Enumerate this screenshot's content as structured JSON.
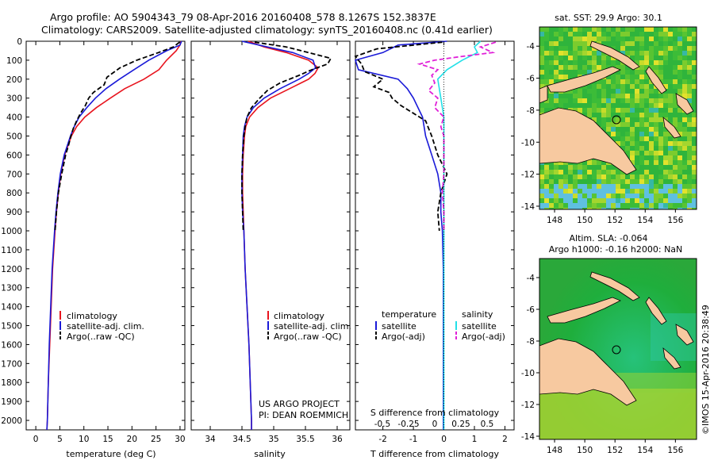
{
  "header": {
    "line1": "Argo profile: AO 5904343_79 08-Apr-2016 20160408_578 8.1267S 152.3837E",
    "line2": "Climatology: CARS2009. Satellite-adjusted climatology: synTS_20160408.nc (0.41d earlier)"
  },
  "colors": {
    "climatology": "#e8141e",
    "satellite": "#1a1ad8",
    "argo": "#000000",
    "sal_satellite": "#22e0e8",
    "sal_argo": "#e020d8",
    "land": "#f7c9a0",
    "sea_green": "#22b83a"
  },
  "depth_axis": {
    "ylim": [
      2050,
      0
    ],
    "ticks": [
      0,
      100,
      200,
      300,
      400,
      500,
      600,
      700,
      800,
      900,
      1000,
      1100,
      1200,
      1300,
      1400,
      1500,
      1600,
      1700,
      1800,
      1900,
      2000
    ],
    "tick_labels": [
      "0",
      "100",
      "200",
      "300",
      "400",
      "500",
      "600",
      "700",
      "800",
      "900",
      "1000",
      "1100",
      "1200",
      "1300",
      "1400",
      "1500",
      "1600",
      "1700",
      "1800",
      "1900",
      "2000"
    ]
  },
  "chart_data": [
    {
      "type": "line",
      "xlabel": "temperature (deg C)",
      "xlim": [
        -2,
        31
      ],
      "xticks": [
        0,
        5,
        10,
        15,
        20,
        25,
        30
      ],
      "xtick_labels": [
        "0",
        "5",
        "10",
        "15",
        "20",
        "25",
        "30"
      ],
      "legend": [
        "climatology",
        "satellite-adj. clim.",
        "Argo(..raw -QC)"
      ],
      "series": [
        {
          "name": "climatology",
          "depth": [
            0,
            20,
            50,
            100,
            150,
            200,
            250,
            300,
            350,
            400,
            450,
            500,
            600,
            700,
            800,
            900,
            1000,
            1200,
            1400,
            1600,
            1800,
            2000,
            2050
          ],
          "values": [
            30.2,
            30.0,
            29.2,
            27.2,
            25.6,
            22.5,
            18.5,
            15.5,
            12.6,
            10.2,
            8.5,
            7.4,
            6.0,
            5.2,
            4.7,
            4.3,
            4.0,
            3.5,
            3.2,
            2.9,
            2.6,
            2.4,
            2.3
          ]
        },
        {
          "name": "satellite-adj. clim.",
          "depth": [
            0,
            20,
            50,
            100,
            150,
            200,
            250,
            300,
            350,
            400,
            450,
            500,
            600,
            700,
            800,
            900,
            1000,
            1200,
            1400,
            1600,
            1800,
            2000,
            2050
          ],
          "values": [
            30.3,
            30.0,
            27.2,
            23.5,
            20.4,
            17.4,
            14.6,
            12.4,
            10.6,
            9.0,
            8.0,
            7.2,
            5.9,
            5.1,
            4.6,
            4.2,
            3.9,
            3.4,
            3.1,
            2.8,
            2.6,
            2.4,
            2.3
          ]
        },
        {
          "name": "Argo(..raw -QC)",
          "depth": [
            5,
            30,
            60,
            100,
            140,
            190,
            230,
            270,
            300,
            340,
            380,
            420,
            460,
            500,
            550,
            600,
            700,
            800,
            900,
            1000
          ],
          "values": [
            29.9,
            28.6,
            25.5,
            21.0,
            17.5,
            14.8,
            14.2,
            12.0,
            11.0,
            10.3,
            9.3,
            8.5,
            7.8,
            7.3,
            6.8,
            6.2,
            5.4,
            4.7,
            4.3,
            4.0
          ]
        }
      ]
    },
    {
      "type": "line",
      "xlabel": "salinity",
      "xlim": [
        33.7,
        36.2
      ],
      "xticks": [
        34,
        34.5,
        35,
        35.5,
        36
      ],
      "xtick_labels": [
        "34",
        "34.5",
        "35",
        "35.5",
        "36"
      ],
      "legend": [
        "climatology",
        "satellite-adj. clim.",
        "Argo(..raw -QC)"
      ],
      "annotation": [
        "US ARGO PROJECT",
        "PI: DEAN ROEMMICH"
      ],
      "series": [
        {
          "name": "climatology",
          "depth": [
            0,
            30,
            60,
            100,
            140,
            170,
            200,
            250,
            300,
            350,
            400,
            450,
            500,
            600,
            700,
            800,
            900,
            1000,
            1200,
            1400,
            1600,
            1800,
            2000,
            2050
          ],
          "values": [
            34.6,
            34.85,
            35.2,
            35.55,
            35.7,
            35.65,
            35.55,
            35.25,
            34.95,
            34.75,
            34.62,
            34.56,
            34.54,
            34.52,
            34.51,
            34.51,
            34.52,
            34.53,
            34.55,
            34.58,
            34.61,
            34.63,
            34.65,
            34.65
          ]
        },
        {
          "name": "satellite-adj. clim.",
          "depth": [
            0,
            30,
            60,
            100,
            140,
            170,
            200,
            250,
            300,
            350,
            400,
            450,
            500,
            600,
            700,
            800,
            900,
            1000,
            1200,
            1400,
            1600,
            1800,
            2000,
            2050
          ],
          "values": [
            34.5,
            34.9,
            35.3,
            35.62,
            35.66,
            35.55,
            35.4,
            35.1,
            34.85,
            34.68,
            34.58,
            34.54,
            34.52,
            34.51,
            34.5,
            34.5,
            34.51,
            34.53,
            34.55,
            34.58,
            34.61,
            34.63,
            34.65,
            34.65
          ]
        },
        {
          "name": "Argo(..raw -QC)",
          "depth": [
            5,
            30,
            60,
            90,
            120,
            150,
            180,
            220,
            260,
            300,
            350,
            400,
            450,
            500,
            550,
            600,
            700,
            800,
            900,
            1000
          ],
          "values": [
            34.7,
            35.2,
            35.55,
            35.9,
            35.85,
            35.6,
            35.4,
            35.1,
            34.9,
            34.78,
            34.65,
            34.58,
            34.55,
            34.53,
            34.52,
            34.51,
            34.5,
            34.5,
            34.51,
            34.52
          ]
        }
      ]
    },
    {
      "type": "line",
      "xlabel": "T difference from climatology",
      "xlabel_top": "S difference from climatology",
      "xlim": [
        -2.9,
        2.3
      ],
      "xticks": [
        -2,
        -1,
        0,
        1,
        2
      ],
      "xtick_labels": [
        "-2",
        "-1",
        "0",
        "1",
        "2"
      ],
      "s_xticks": [
        -0.5,
        -0.25,
        0,
        0.25,
        0.5
      ],
      "s_xtick_labels": [
        "-0.5",
        "-0.25",
        "0",
        "0.25",
        "0.5"
      ],
      "legend_temperature": {
        "header": "temperature",
        "items": [
          "satellite",
          "Argo(-adj)"
        ]
      },
      "legend_salinity": {
        "header": "salinity",
        "items": [
          "satellite",
          "Argo(-adj)"
        ]
      },
      "series": [
        {
          "name": "temperature satellite",
          "depth": [
            0,
            20,
            60,
            100,
            150,
            200,
            250,
            300,
            400,
            500,
            600,
            700,
            800,
            900,
            1000,
            1200,
            1500,
            1800,
            2000,
            2050
          ],
          "values": [
            0.1,
            -1.5,
            -2.0,
            -2.9,
            -2.8,
            -1.5,
            -1.2,
            -1.0,
            -0.7,
            -0.6,
            -0.4,
            -0.2,
            -0.1,
            -0.1,
            -0.05,
            -0.02,
            -0.02,
            -0.02,
            -0.02,
            -0.02
          ]
        },
        {
          "name": "temperature Argo(-adj)",
          "depth": [
            5,
            40,
            80,
            120,
            160,
            200,
            240,
            270,
            300,
            340,
            380,
            420,
            460,
            500,
            550,
            600,
            700,
            800,
            900,
            1000
          ],
          "values": [
            -0.05,
            -2.2,
            -2.9,
            -2.7,
            -2.6,
            -2.0,
            -2.3,
            -1.8,
            -1.7,
            -1.4,
            -1.0,
            -0.6,
            -0.5,
            -0.4,
            -0.3,
            -0.2,
            0.1,
            -0.1,
            -0.2,
            -0.15
          ]
        },
        {
          "name": "salinity satellite",
          "depth": [
            0,
            30,
            60,
            100,
            150,
            200,
            300,
            400,
            500,
            600,
            700,
            800,
            1000,
            1500,
            2000,
            2050
          ],
          "values": [
            1.2,
            1.0,
            1.1,
            0.6,
            0.1,
            -0.2,
            -0.1,
            0.0,
            0.0,
            0.0,
            0.0,
            0.0,
            0.0,
            0.0,
            0.0,
            0.0
          ]
        },
        {
          "name": "salinity Argo(-adj)",
          "depth": [
            5,
            30,
            60,
            80,
            100,
            120,
            150,
            180,
            220,
            260,
            300,
            350,
            400,
            450,
            500,
            600,
            700,
            800,
            900,
            1000
          ],
          "values": [
            1.7,
            1.2,
            1.6,
            0.6,
            -0.3,
            -0.8,
            -0.2,
            -0.4,
            -0.3,
            -0.5,
            -0.2,
            -0.3,
            0.0,
            -0.1,
            0.0,
            0.0,
            0.0,
            -0.05,
            0.0,
            0.0
          ]
        }
      ]
    },
    {
      "type": "heatmap",
      "title": "sat. SST: 29.9 Argo: 30.1",
      "xlim": [
        147,
        157.4
      ],
      "ylim": [
        -14.2,
        -2.8
      ],
      "xticks": [
        148,
        150,
        152,
        154,
        156
      ],
      "xtick_labels": [
        "148",
        "150",
        "152",
        "154",
        "156"
      ],
      "yticks": [
        -4,
        -6,
        -8,
        -10,
        -12,
        -14
      ],
      "ytick_labels": [
        "-4",
        "-6",
        "-8",
        "-10",
        "-12",
        "-14"
      ],
      "marker": {
        "lon": 152.38,
        "lat": -8.13
      }
    },
    {
      "type": "heatmap",
      "title": "Altim. SLA: -0.064",
      "subtitle": "Argo h1000: -0.16 h2000: NaN",
      "xlim": [
        147,
        157.4
      ],
      "ylim": [
        -14.2,
        -2.8
      ],
      "xticks": [
        148,
        150,
        152,
        154,
        156
      ],
      "xtick_labels": [
        "148",
        "150",
        "152",
        "154",
        "156"
      ],
      "yticks": [
        -4,
        -6,
        -8,
        -10,
        -12,
        -14
      ],
      "ytick_labels": [
        "-4",
        "-6",
        "-8",
        "-10",
        "-12",
        "-14"
      ],
      "marker": {
        "lon": 152.38,
        "lat": -8.13
      }
    }
  ],
  "credit": "©IMOS 15-Apr-2016 20:38:49"
}
